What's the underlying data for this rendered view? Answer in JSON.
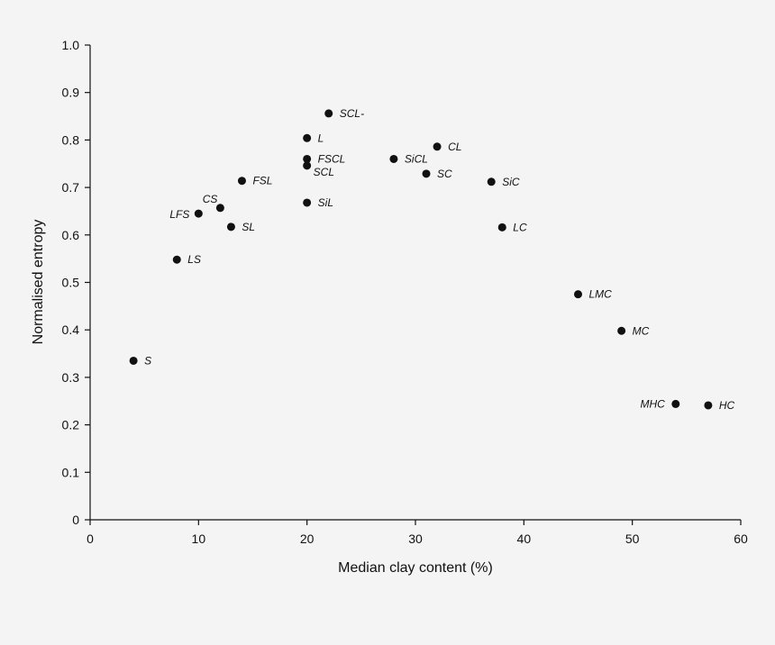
{
  "chart_data": {
    "type": "scatter",
    "title": "",
    "xlabel": "Median clay content (%)",
    "ylabel": "Normalised entropy",
    "xlim": [
      0,
      60
    ],
    "ylim": [
      0,
      1.0
    ],
    "x_ticks": [
      "0",
      "10",
      "20",
      "30",
      "40",
      "50",
      "60"
    ],
    "y_ticks": [
      "0",
      "0.1",
      "0.2",
      "0.3",
      "0.4",
      "0.5",
      "0.6",
      "0.7",
      "0.8",
      "0.9",
      "1.0"
    ],
    "grid": false,
    "point_color": "#111111",
    "points": [
      {
        "label": "S",
        "x": 4,
        "y": 0.335
      },
      {
        "label": "LS",
        "x": 8,
        "y": 0.548
      },
      {
        "label": "LFS",
        "x": 10,
        "y": 0.645
      },
      {
        "label": "CS",
        "x": 12,
        "y": 0.657
      },
      {
        "label": "SL",
        "x": 13,
        "y": 0.617
      },
      {
        "label": "FSL",
        "x": 14,
        "y": 0.714
      },
      {
        "label": "L",
        "x": 20,
        "y": 0.804
      },
      {
        "label": "FSCL",
        "x": 20,
        "y": 0.76
      },
      {
        "label": "SCL",
        "x": 20,
        "y": 0.746
      },
      {
        "label": "SiL",
        "x": 20,
        "y": 0.668
      },
      {
        "label": "SCL-",
        "x": 22,
        "y": 0.856
      },
      {
        "label": "SiCL",
        "x": 28,
        "y": 0.76
      },
      {
        "label": "SC",
        "x": 31,
        "y": 0.729
      },
      {
        "label": "CL",
        "x": 32,
        "y": 0.786
      },
      {
        "label": "SiC",
        "x": 37,
        "y": 0.712
      },
      {
        "label": "LC",
        "x": 38,
        "y": 0.616
      },
      {
        "label": "LMC",
        "x": 45,
        "y": 0.475
      },
      {
        "label": "MC",
        "x": 49,
        "y": 0.398
      },
      {
        "label": "MHC",
        "x": 54,
        "y": 0.244
      },
      {
        "label": "HC",
        "x": 57,
        "y": 0.241
      }
    ]
  }
}
